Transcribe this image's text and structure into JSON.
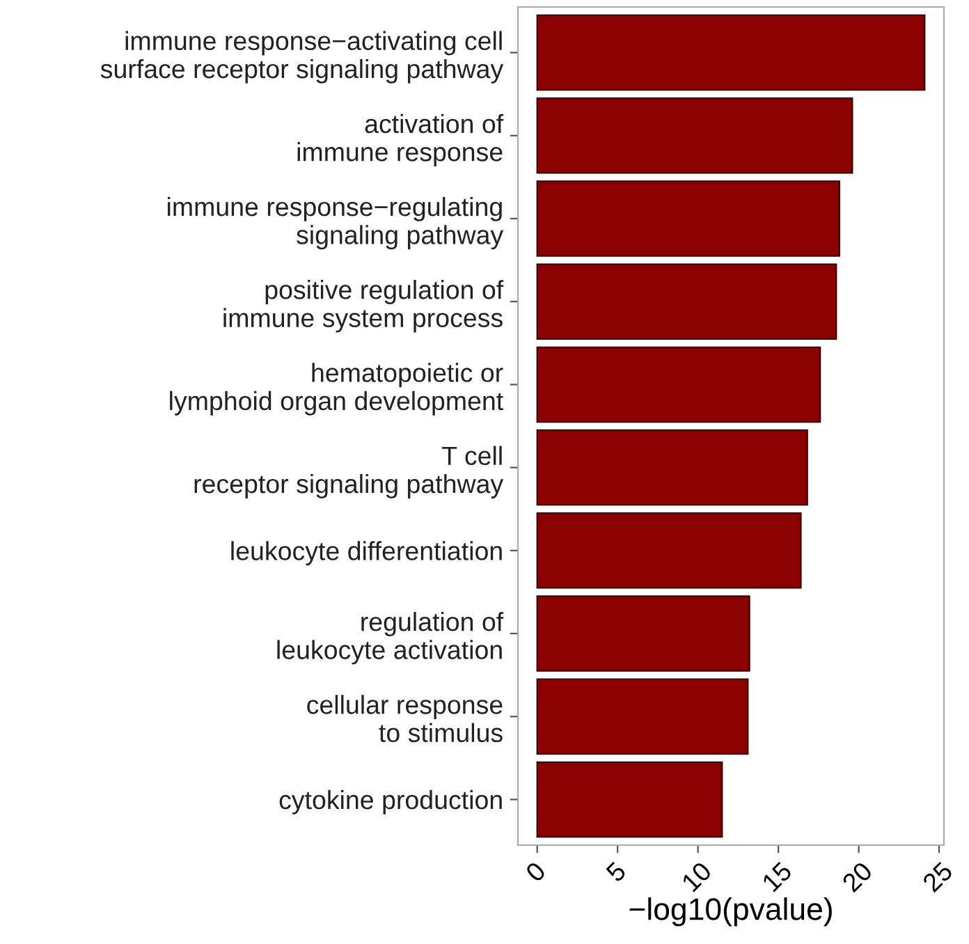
{
  "chart_data": {
    "type": "bar",
    "orientation": "horizontal",
    "xlabel": "−log10(pvalue)",
    "categories": [
      "immune response−activating cell\nsurface receptor signaling pathway",
      "activation of\nimmune response",
      "immune response−regulating\nsignaling pathway",
      "positive regulation of\nimmune system process",
      "hematopoietic or\nlymphoid organ development",
      "T cell\nreceptor signaling pathway",
      "leukocyte differentiation",
      "regulation of\nleukocyte activation",
      "cellular response\nto stimulus",
      "cytokine production"
    ],
    "values": [
      24.1,
      19.6,
      18.8,
      18.6,
      17.6,
      16.8,
      16.4,
      13.2,
      13.1,
      11.5
    ],
    "color": "#8b0000",
    "xlim": [
      -1.2,
      25.3
    ],
    "xticks": [
      0,
      5,
      10,
      15,
      20,
      25
    ],
    "grid": false
  }
}
